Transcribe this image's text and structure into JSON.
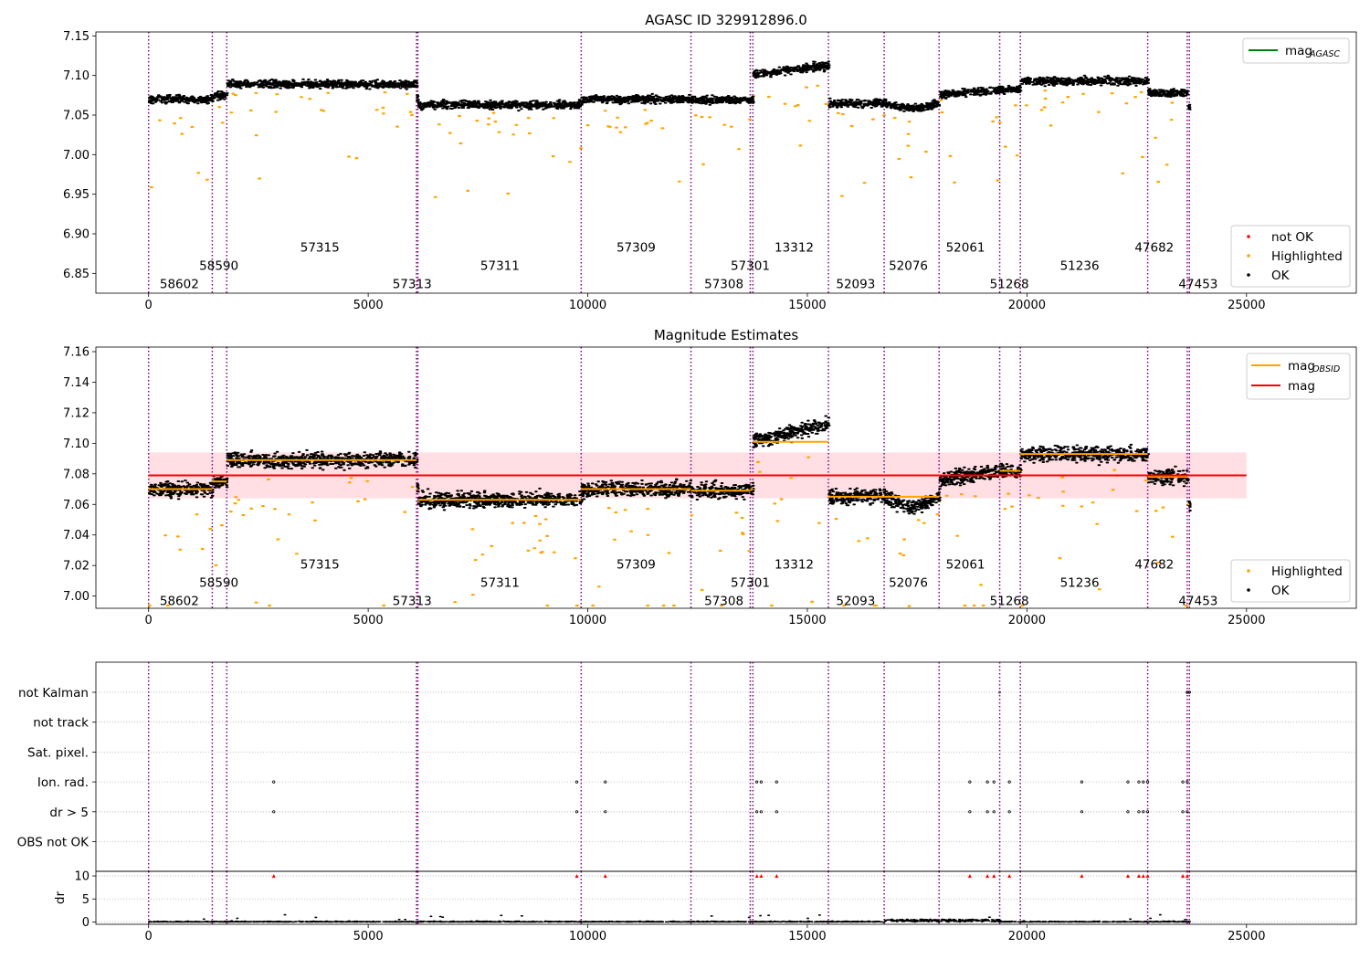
{
  "colors": {
    "ok": "#000000",
    "highlighted": "#ffa500",
    "not_ok": "#ff0000",
    "agasc_mag": "#008000",
    "mean_mag": "#ff0000",
    "obsid_mag": "#ffa500",
    "band": "#ffc0c8",
    "obs_lines": "#800080",
    "grid": "#b0b0b0"
  },
  "chart_data": [
    {
      "type": "scatter",
      "title": "AGASC ID 329912896.0",
      "xlim": [
        -1200,
        27500
      ],
      "ylim": [
        6.825,
        7.155
      ],
      "xticks": [
        "0",
        "5000",
        "10000",
        "15000",
        "20000",
        "25000"
      ],
      "yticks": [
        "6.85",
        "6.90",
        "6.95",
        "7.00",
        "7.05",
        "7.10",
        "7.15"
      ],
      "legend_lines": [
        {
          "label": "mag",
          "sub": "AGASC"
        }
      ],
      "legend_points": [
        "not OK",
        "Highlighted",
        "OK"
      ],
      "obsid_labels": [
        {
          "x": 700,
          "y": 6.837,
          "text": "58602"
        },
        {
          "x": 1600,
          "y": 6.86,
          "text": "58590"
        },
        {
          "x": 3900,
          "y": 6.883,
          "text": "57315"
        },
        {
          "x": 6000,
          "y": 6.837,
          "text": "57313"
        },
        {
          "x": 8000,
          "y": 6.86,
          "text": "57311"
        },
        {
          "x": 11100,
          "y": 6.883,
          "text": "57309"
        },
        {
          "x": 13100,
          "y": 6.837,
          "text": "57308"
        },
        {
          "x": 13700,
          "y": 6.86,
          "text": "57301"
        },
        {
          "x": 14700,
          "y": 6.883,
          "text": "13312"
        },
        {
          "x": 16100,
          "y": 6.837,
          "text": "52093"
        },
        {
          "x": 17300,
          "y": 6.86,
          "text": "52076"
        },
        {
          "x": 18600,
          "y": 6.883,
          "text": "52061"
        },
        {
          "x": 19600,
          "y": 6.837,
          "text": "51268"
        },
        {
          "x": 21200,
          "y": 6.86,
          "text": "51236"
        },
        {
          "x": 22900,
          "y": 6.883,
          "text": "47682"
        },
        {
          "x": 23900,
          "y": 6.837,
          "text": "47453"
        }
      ]
    },
    {
      "type": "scatter",
      "title": "Magnitude Estimates",
      "xlim": [
        -1200,
        27500
      ],
      "ylim": [
        6.992,
        7.163
      ],
      "xticks": [
        "0",
        "5000",
        "10000",
        "15000",
        "20000",
        "25000"
      ],
      "yticks": [
        "7.00",
        "7.02",
        "7.04",
        "7.06",
        "7.08",
        "7.10",
        "7.12",
        "7.14",
        "7.16"
      ],
      "mean_mag": 7.079,
      "band": [
        7.064,
        7.094
      ],
      "legend_lines": [
        {
          "label": "mag",
          "sub": "OBSID"
        },
        {
          "label": "mag",
          "sub": ""
        }
      ],
      "legend_points": [
        "Highlighted",
        "OK"
      ],
      "obsid_labels": [
        {
          "x": 700,
          "y": 6.997,
          "text": "58602"
        },
        {
          "x": 1600,
          "y": 7.009,
          "text": "58590"
        },
        {
          "x": 3900,
          "y": 7.021,
          "text": "57315"
        },
        {
          "x": 6000,
          "y": 6.997,
          "text": "57313"
        },
        {
          "x": 8000,
          "y": 7.009,
          "text": "57311"
        },
        {
          "x": 11100,
          "y": 7.021,
          "text": "57309"
        },
        {
          "x": 13100,
          "y": 6.997,
          "text": "57308"
        },
        {
          "x": 13700,
          "y": 7.009,
          "text": "57301"
        },
        {
          "x": 14700,
          "y": 7.021,
          "text": "13312"
        },
        {
          "x": 16100,
          "y": 6.997,
          "text": "52093"
        },
        {
          "x": 17300,
          "y": 7.009,
          "text": "52076"
        },
        {
          "x": 18600,
          "y": 7.021,
          "text": "52061"
        },
        {
          "x": 19600,
          "y": 6.997,
          "text": "51268"
        },
        {
          "x": 21200,
          "y": 7.009,
          "text": "51236"
        },
        {
          "x": 22900,
          "y": 7.021,
          "text": "47682"
        },
        {
          "x": 23900,
          "y": 6.997,
          "text": "47453"
        }
      ]
    },
    {
      "type": "scatter",
      "title": "",
      "xlim": [
        -1200,
        27500
      ],
      "xticks": [
        "0",
        "5000",
        "10000",
        "15000",
        "20000",
        "25000"
      ],
      "flag_rows": [
        "not Kalman",
        "not track",
        "Sat. pixel.",
        "Ion. rad.",
        "dr > 5",
        "OBS not OK"
      ],
      "flag_events_x": [
        2850,
        9750,
        10400,
        13850,
        13950,
        14300,
        18700,
        19100,
        19250,
        19600,
        21250,
        22300,
        22550,
        22650,
        22750,
        23550,
        23650
      ],
      "dr_ylabel": "dr",
      "dr_yticks": [
        "0",
        "5",
        "10"
      ],
      "dr_ylim": [
        -0.5,
        11
      ]
    }
  ],
  "obsids": [
    {
      "obsid": "58602",
      "start": 0,
      "end": 1450,
      "mag": 7.07
    },
    {
      "obsid": "58590",
      "start": 1450,
      "end": 1780,
      "mag": 7.075
    },
    {
      "obsid": "57315",
      "start": 1780,
      "end": 6100,
      "mag": 7.089
    },
    {
      "obsid": "57313",
      "start": 6100,
      "end": 6130,
      "mag": 7.07
    },
    {
      "obsid": "57311",
      "start": 6130,
      "end": 9850,
      "mag": 7.063
    },
    {
      "obsid": "57309",
      "start": 9850,
      "end": 12350,
      "mag": 7.07
    },
    {
      "obsid": "57308",
      "start": 12350,
      "end": 13700,
      "mag": 7.069
    },
    {
      "obsid": "57301",
      "start": 13700,
      "end": 13760,
      "mag": 7.07
    },
    {
      "obsid": "13312",
      "start": 13760,
      "end": 15480,
      "mag": 7.101
    },
    {
      "obsid": "52093",
      "start": 15480,
      "end": 16750,
      "mag": 7.065
    },
    {
      "obsid": "52076",
      "start": 16750,
      "end": 18000,
      "mag": 7.065
    },
    {
      "obsid": "52061",
      "start": 18000,
      "end": 19380,
      "mag": 7.079
    },
    {
      "obsid": "51268",
      "start": 19380,
      "end": 19850,
      "mag": 7.082
    },
    {
      "obsid": "51236",
      "start": 19850,
      "end": 22750,
      "mag": 7.093
    },
    {
      "obsid": "47682",
      "start": 22750,
      "end": 23650,
      "mag": 7.078
    },
    {
      "obsid": "47453",
      "start": 23650,
      "end": 23700,
      "mag": 7.06
    }
  ]
}
